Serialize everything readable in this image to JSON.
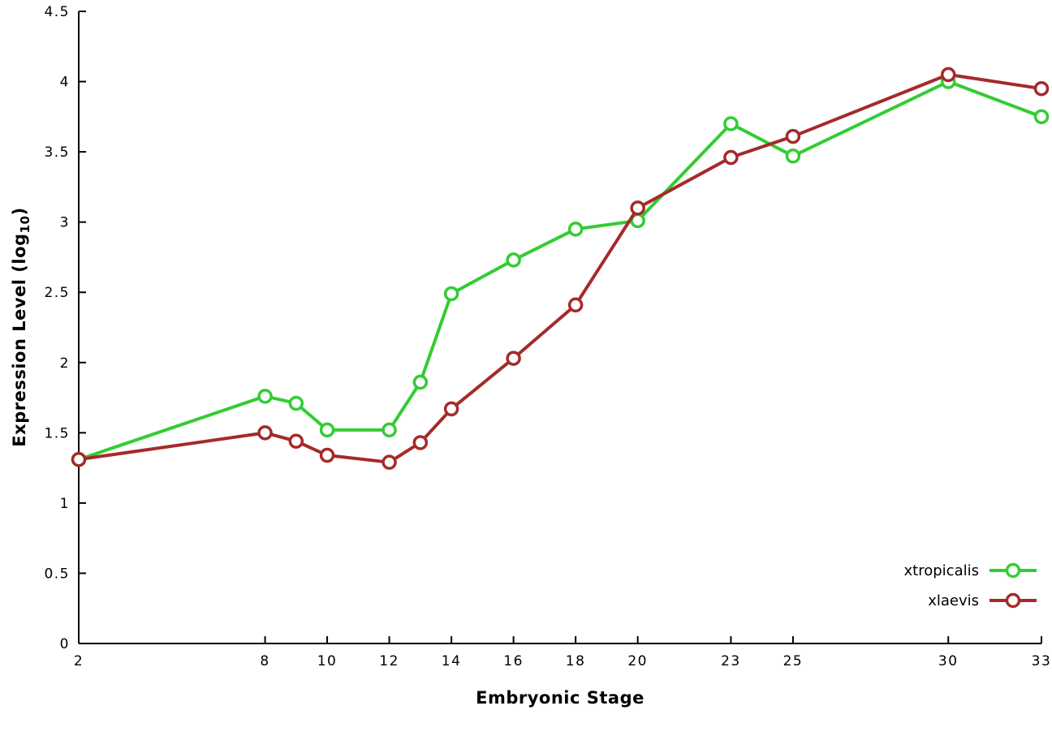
{
  "chart_data": {
    "type": "line",
    "title": "",
    "xlabel": "Embryonic Stage",
    "ylabel_parts": {
      "prefix": "Expression Level (log",
      "sub": "10",
      "suffix": ")"
    },
    "x": [
      2,
      8,
      9,
      10,
      12,
      13,
      14,
      16,
      18,
      20,
      23,
      25,
      30,
      33
    ],
    "series": [
      {
        "name": "xtropicalis",
        "color": "#33cc33",
        "values": [
          1.31,
          1.76,
          1.71,
          1.52,
          1.52,
          1.86,
          2.49,
          2.73,
          2.95,
          3.01,
          3.7,
          3.47,
          4.0,
          3.75
        ]
      },
      {
        "name": "xlaevis",
        "color": "#a52a2a",
        "values": [
          1.31,
          1.5,
          1.44,
          1.34,
          1.29,
          1.43,
          1.67,
          2.03,
          2.41,
          3.1,
          3.46,
          3.61,
          4.05,
          3.95
        ]
      }
    ],
    "xlim": [
      2,
      33
    ],
    "ylim": [
      0,
      4.5
    ],
    "x_ticks": {
      "values": [
        2,
        8,
        10,
        12,
        14,
        16,
        18,
        20,
        23,
        25,
        30,
        33
      ],
      "labels": [
        "2",
        "8",
        "10",
        "12",
        "14",
        "16",
        "18",
        "20",
        "23",
        "25",
        "30",
        "33"
      ]
    },
    "y_ticks": {
      "values": [
        0,
        0.5,
        1,
        1.5,
        2,
        2.5,
        3,
        3.5,
        4,
        4.5
      ],
      "labels": [
        "0",
        "0.5",
        "1",
        "1.5",
        "2",
        "2.5",
        "3",
        "3.5",
        "4",
        "4.5"
      ]
    },
    "legend": {
      "position": "bottom-right",
      "entries": [
        "xtropicalis",
        "xlaevis"
      ]
    },
    "grid": false,
    "marker": "open-circle",
    "axis_color": "#000000",
    "background": "#ffffff"
  }
}
